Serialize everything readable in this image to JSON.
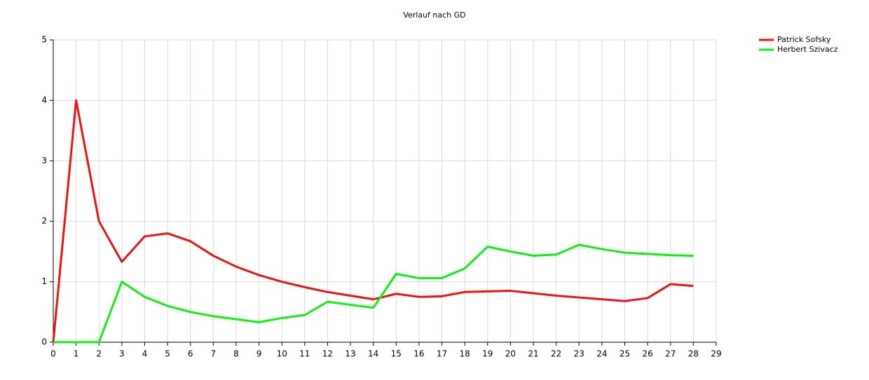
{
  "chart_data": {
    "type": "line",
    "title": "Verlauf nach GD",
    "x": [
      0,
      1,
      2,
      3,
      4,
      5,
      6,
      7,
      8,
      9,
      10,
      11,
      12,
      13,
      14,
      15,
      16,
      17,
      18,
      19,
      20,
      21,
      22,
      23,
      24,
      25,
      26,
      27,
      28
    ],
    "series": [
      {
        "name": "Patrick Sofsky",
        "color": "#ee1111",
        "values": [
          0,
          4,
          2,
          1.33,
          1.75,
          1.8,
          1.67,
          1.43,
          1.25,
          1.11,
          1.0,
          0.91,
          0.83,
          0.77,
          0.71,
          0.8,
          0.75,
          0.76,
          0.83,
          0.84,
          0.85,
          0.81,
          0.77,
          0.74,
          0.71,
          0.68,
          0.73,
          0.96,
          0.93
        ]
      },
      {
        "name": "Herbert Szivacz",
        "color": "#11ee11",
        "values": [
          0,
          0,
          0,
          1.0,
          0.75,
          0.6,
          0.5,
          0.43,
          0.38,
          0.33,
          0.4,
          0.45,
          0.67,
          0.62,
          0.57,
          1.13,
          1.06,
          1.06,
          1.22,
          1.58,
          1.5,
          1.43,
          1.45,
          1.61,
          1.54,
          1.48,
          1.46,
          1.44,
          1.43
        ]
      }
    ],
    "xlim": [
      0,
      29
    ],
    "xticks": [
      0,
      1,
      2,
      3,
      4,
      5,
      6,
      7,
      8,
      9,
      10,
      11,
      12,
      13,
      14,
      15,
      16,
      17,
      18,
      19,
      20,
      21,
      22,
      23,
      24,
      25,
      26,
      27,
      28,
      29
    ],
    "ylim": [
      0,
      5
    ],
    "yticks": [
      0,
      1,
      2,
      3,
      4,
      5
    ],
    "grid": true
  }
}
